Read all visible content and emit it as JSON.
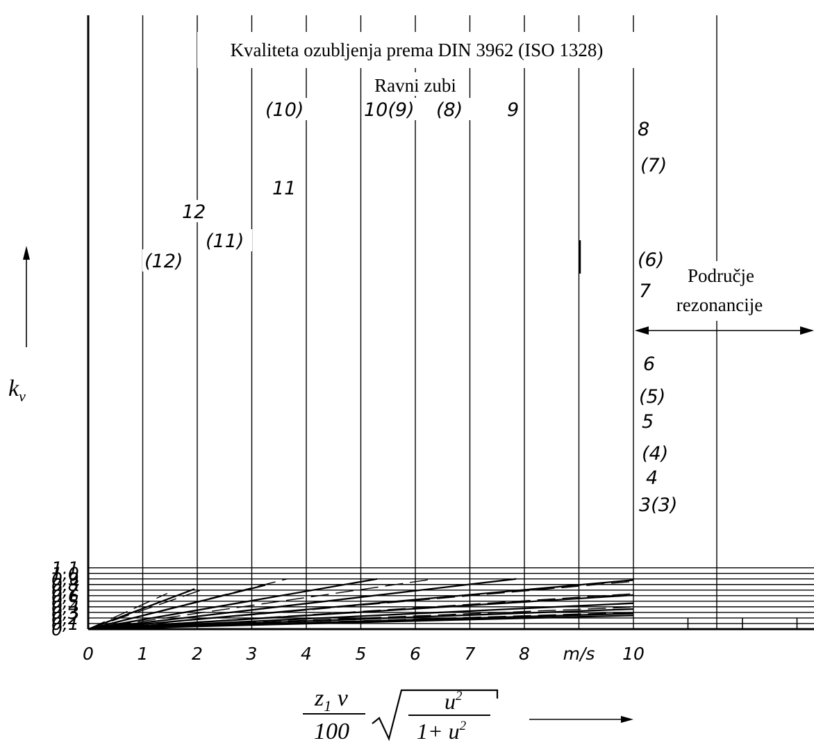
{
  "chart_data": {
    "type": "line",
    "title": "Kvaliteta ozubljenja prema DIN 3962 (ISO 1328)",
    "subtitle": "Ravni zubi",
    "ylabel": "k",
    "ylabel_sub": "v",
    "xlabel": {
      "numerator": "z",
      "numerator_sub": "1",
      "numerator_var": " v",
      "denominator": "100",
      "root_numerator": "u",
      "root_numerator_sup": "2",
      "root_denominator": "1+ u",
      "root_denominator_sup": "2"
    },
    "x_unit": "m/s",
    "xlim": [
      0,
      13
    ],
    "ylim": [
      0,
      1.1
    ],
    "x_ticks": [
      "0",
      "1",
      "2",
      "3",
      "4",
      "5",
      "6",
      "7",
      "8",
      "10"
    ],
    "y_ticks": [
      "0",
      "0,1",
      "0,2",
      "0,3",
      "0,4",
      "0,5",
      "0,6",
      "0,7",
      "0,8",
      "0,9",
      "1,0",
      "1.1"
    ],
    "resonance_label": [
      "Područje",
      "rezonancije"
    ],
    "grid": true,
    "series": [
      {
        "name": "3(3)",
        "style": "solid",
        "points": [
          [
            0,
            0
          ],
          [
            10,
            0.245
          ]
        ]
      },
      {
        "name": "4",
        "style": "solid",
        "points": [
          [
            0,
            0
          ],
          [
            10,
            0.28
          ]
        ]
      },
      {
        "name": "(4)",
        "style": "dashed",
        "points": [
          [
            0,
            0
          ],
          [
            10,
            0.3
          ]
        ]
      },
      {
        "name": "5",
        "style": "solid",
        "points": [
          [
            0,
            0
          ],
          [
            10,
            0.36
          ]
        ]
      },
      {
        "name": "(5)",
        "style": "dashed",
        "points": [
          [
            0,
            0
          ],
          [
            10,
            0.395
          ]
        ]
      },
      {
        "name": "6",
        "style": "solid",
        "points": [
          [
            0,
            0
          ],
          [
            10,
            0.465
          ]
        ]
      },
      {
        "name": "7",
        "style": "solid",
        "points": [
          [
            0,
            0
          ],
          [
            10,
            0.61
          ]
        ]
      },
      {
        "name": "(6)",
        "style": "dashed",
        "points": [
          [
            0,
            0
          ],
          [
            10,
            0.635
          ]
        ]
      },
      {
        "name": "(7)",
        "style": "dashed",
        "points": [
          [
            0,
            0
          ],
          [
            10,
            0.855
          ]
        ]
      },
      {
        "name": "8",
        "style": "solid",
        "points": [
          [
            0,
            0
          ],
          [
            10,
            0.88
          ]
        ]
      },
      {
        "name": "9",
        "style": "solid",
        "points": [
          [
            0,
            0
          ],
          [
            7.85,
            0.9
          ]
        ]
      },
      {
        "name": "(8)",
        "style": "dashed",
        "points": [
          [
            0,
            0
          ],
          [
            6.35,
            0.9
          ]
        ]
      },
      {
        "name": "10(9)",
        "style": "solid",
        "points": [
          [
            0,
            0
          ],
          [
            5.3,
            0.9
          ]
        ]
      },
      {
        "name": "(10)",
        "style": "dashed",
        "points": [
          [
            0,
            0
          ],
          [
            3.65,
            0.9
          ]
        ]
      },
      {
        "name": "11",
        "style": "solid",
        "points": [
          [
            0,
            0
          ],
          [
            3.25,
            0.79
          ]
        ]
      },
      {
        "name": "(11)",
        "style": "dashed",
        "points": [
          [
            0,
            0
          ],
          [
            2.1,
            0.71
          ]
        ]
      },
      {
        "name": "12",
        "style": "solid",
        "points": [
          [
            0,
            0
          ],
          [
            1.95,
            0.72
          ]
        ]
      },
      {
        "name": "(12)",
        "style": "dashed",
        "points": [
          [
            0,
            0
          ],
          [
            1.45,
            0.64
          ]
        ]
      }
    ]
  }
}
